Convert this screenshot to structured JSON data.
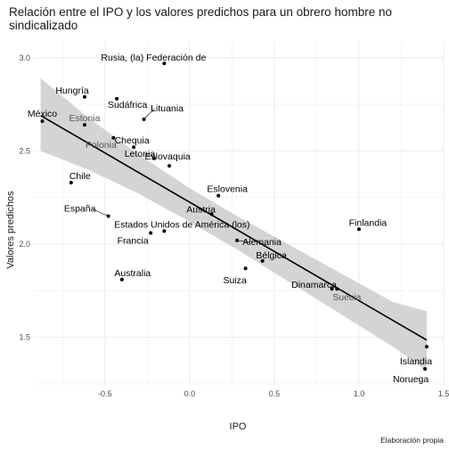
{
  "chart_data": {
    "type": "scatter",
    "title": "Relación entre el IPO y los valores predichos para un obrero hombre no sindicalizado",
    "xlabel": "IPO",
    "ylabel": "Valores predichos",
    "caption": "Elaboración propia",
    "xlim": [
      -0.92,
      1.5
    ],
    "ylim": [
      1.24,
      3.09
    ],
    "xticks": [
      -0.5,
      0.0,
      0.5,
      1.0,
      1.5
    ],
    "xtick_labels": [
      "-0.5",
      "0.0",
      "0.5",
      "1.0",
      "1.5"
    ],
    "yticks": [
      1.5,
      2.0,
      2.5,
      3.0
    ],
    "ytick_labels": [
      "1.5",
      "2.0",
      "2.5",
      "3.0"
    ],
    "grid": true,
    "legend": "none",
    "colors": {
      "points": "#000000",
      "line": "#000000",
      "ribbon": "#cccccc",
      "grid": "#ebebeb"
    },
    "fit_line": {
      "x": [
        -0.88,
        1.4
      ],
      "y": [
        2.69,
        1.485
      ]
    },
    "confidence_band": {
      "x": [
        -0.88,
        -0.6,
        -0.3,
        0.0,
        0.3,
        0.6,
        0.9,
        1.2,
        1.4
      ],
      "lower": [
        2.5,
        2.4,
        2.27,
        2.12,
        1.96,
        1.79,
        1.62,
        1.45,
        1.32
      ],
      "upper": [
        2.89,
        2.68,
        2.48,
        2.3,
        2.14,
        1.99,
        1.84,
        1.69,
        1.64
      ]
    },
    "points": [
      {
        "name": "México",
        "x": -0.87,
        "y": 2.66
      },
      {
        "name": "Estonia",
        "x": -0.62,
        "y": 2.64
      },
      {
        "name": "Hungría",
        "x": -0.62,
        "y": 2.79
      },
      {
        "name": "Chile",
        "x": -0.7,
        "y": 2.33
      },
      {
        "name": "Polonia",
        "x": -0.45,
        "y": 2.57
      },
      {
        "name": "España",
        "x": -0.48,
        "y": 2.15
      },
      {
        "name": "Sudáfrica",
        "x": -0.43,
        "y": 2.78
      },
      {
        "name": "Chequia",
        "x": -0.33,
        "y": 2.52
      },
      {
        "name": "Australia",
        "x": -0.4,
        "y": 1.81
      },
      {
        "name": "Rusia, (la) Federación de",
        "x": -0.15,
        "y": 2.97
      },
      {
        "name": "Lituania",
        "x": -0.27,
        "y": 2.67
      },
      {
        "name": "Letonia",
        "x": -0.21,
        "y": 2.46
      },
      {
        "name": "Eslovaquia",
        "x": -0.12,
        "y": 2.42
      },
      {
        "name": "Estados Unidos de América (los)",
        "x": -0.15,
        "y": 2.07
      },
      {
        "name": "Francia",
        "x": -0.23,
        "y": 2.06
      },
      {
        "name": "Austria",
        "x": 0.13,
        "y": 2.16
      },
      {
        "name": "Eslovenia",
        "x": 0.17,
        "y": 2.26
      },
      {
        "name": "Alemania",
        "x": 0.28,
        "y": 2.02
      },
      {
        "name": "Bélgica",
        "x": 0.43,
        "y": 1.91
      },
      {
        "name": "Suiza",
        "x": 0.33,
        "y": 1.87
      },
      {
        "name": "Dinamarca",
        "x": 0.84,
        "y": 1.76
      },
      {
        "name": "Suecia",
        "x": 0.87,
        "y": 1.76
      },
      {
        "name": "Finlandia",
        "x": 1.0,
        "y": 2.08
      },
      {
        "name": "Islandia",
        "x": 1.4,
        "y": 1.45
      },
      {
        "name": "Noruega",
        "x": 1.39,
        "y": 1.33
      }
    ]
  }
}
